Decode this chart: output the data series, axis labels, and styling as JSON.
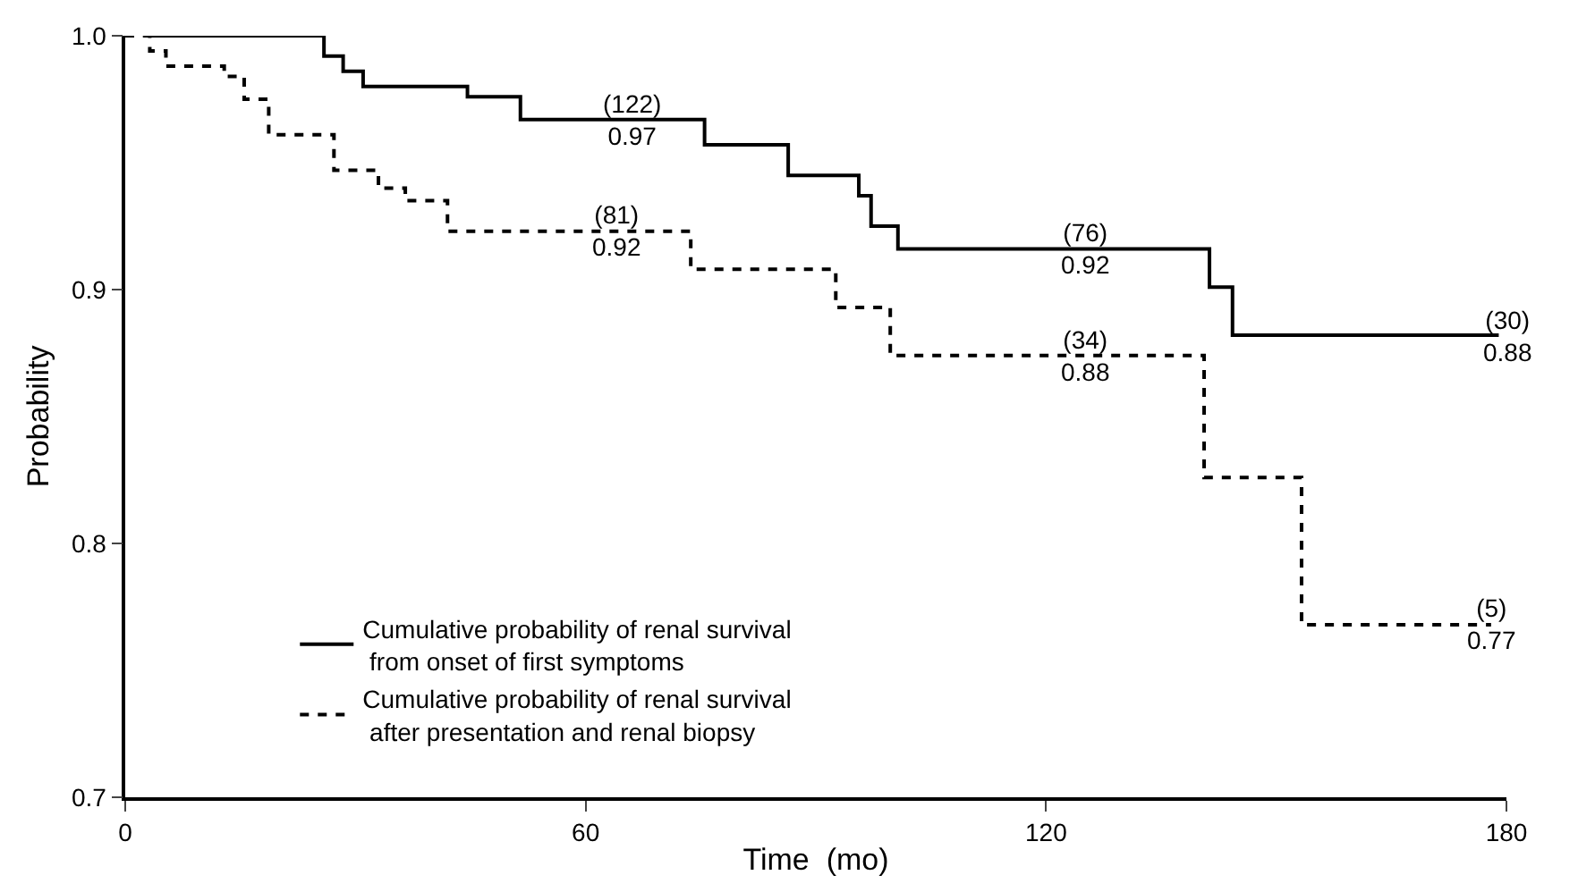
{
  "chart_data": {
    "type": "step",
    "xlabel": "Time  (mo)",
    "ylabel": "Probability",
    "xlim": [
      0,
      180
    ],
    "xticks": [
      0,
      60,
      120,
      180
    ],
    "ylim": [
      0.7,
      1.0
    ],
    "yticks": [
      0.7,
      0.8,
      0.9,
      {
        "value": 1.0,
        "label": "1.0"
      }
    ],
    "legend": "bottom left",
    "marker": "none",
    "series": [
      {
        "name": "Cumulative probability of renal survival\n from onset of first symptoms",
        "color": "#000000",
        "line_style": "solid",
        "x": [
          2.3,
          25.9,
          28.4,
          31,
          44.6,
          51.5,
          75.5,
          86.4,
          95.6,
          97.2,
          100.7,
          141.3,
          144.3,
          179
        ],
        "values": [
          1.0,
          0.992,
          0.986,
          0.98,
          0.976,
          0.967,
          0.957,
          0.945,
          0.937,
          0.925,
          0.916,
          0.901,
          0.882,
          0.882
        ]
      },
      {
        "name": "Cumulative probability of renal survival\n after presentation and renal biopsy",
        "color": "#000000",
        "line_style": "dashed",
        "x": [
          0,
          3.2,
          5.3,
          12.9,
          15.5,
          18.7,
          27.2,
          33,
          36.5,
          42,
          73.7,
          92.6,
          99.7,
          140.6,
          153.3,
          178
        ],
        "values": [
          1.0,
          0.994,
          0.988,
          0.984,
          0.975,
          0.961,
          0.947,
          0.94,
          0.935,
          0.923,
          0.908,
          0.893,
          0.874,
          0.826,
          0.768,
          0.768
        ]
      }
    ],
    "annotations": [
      {
        "text": "(122)\n0.97",
        "x": 66,
        "y": 0.967
      },
      {
        "text": "(81)\n0.92",
        "x": 64,
        "y": 0.923
      },
      {
        "text": "(76)\n0.92",
        "x": 125,
        "y": 0.916
      },
      {
        "text": "(34)\n0.88",
        "x": 125,
        "y": 0.874
      },
      {
        "text": "(30)\n0.88",
        "x": 180,
        "y": 0.882
      },
      {
        "text": "(5)\n0.77",
        "x": 178,
        "y": 0.768
      }
    ]
  }
}
